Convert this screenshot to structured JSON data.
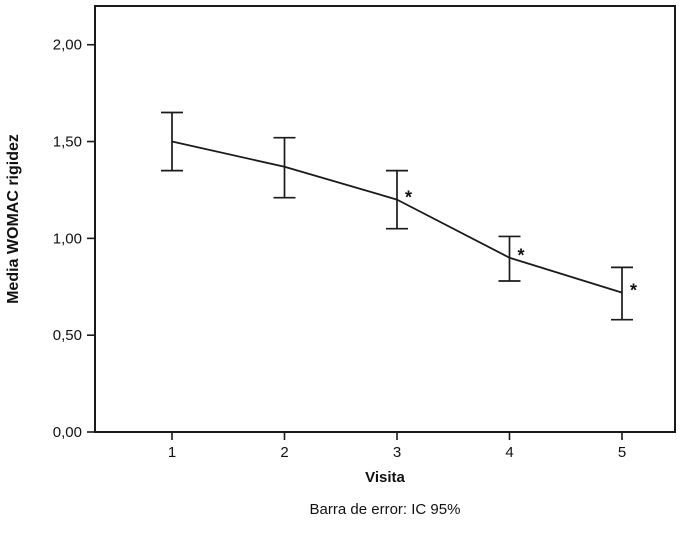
{
  "figure": {
    "background": "#ffffff",
    "line_color": "#1a1a1a"
  },
  "chart_data": {
    "type": "line",
    "x": [
      1,
      2,
      3,
      4,
      5
    ],
    "categories": [
      "1",
      "2",
      "3",
      "4",
      "5"
    ],
    "series": [
      {
        "name": "Media WOMAC rigidez",
        "values": [
          1.5,
          1.37,
          1.2,
          0.9,
          0.72
        ]
      }
    ],
    "error_upper": [
      1.65,
      1.52,
      1.35,
      1.01,
      0.85
    ],
    "error_lower": [
      1.35,
      1.21,
      1.05,
      0.78,
      0.58
    ],
    "significant": [
      false,
      false,
      true,
      true,
      true
    ],
    "significance_marker": "*",
    "title": "",
    "xlabel": "Visita",
    "ylabel": "Media WOMAC rigidez",
    "caption": "Barra de error: IC 95%",
    "ylim": [
      0,
      2.2
    ],
    "yticks": [
      0.0,
      0.5,
      1.0,
      1.5,
      2.0
    ],
    "ytick_labels": [
      "0,00",
      "0,50",
      "1,00",
      "1,50",
      "2,00"
    ],
    "xtick_labels": [
      "1",
      "2",
      "3",
      "4",
      "5"
    ],
    "grid": false,
    "legend": "none"
  }
}
